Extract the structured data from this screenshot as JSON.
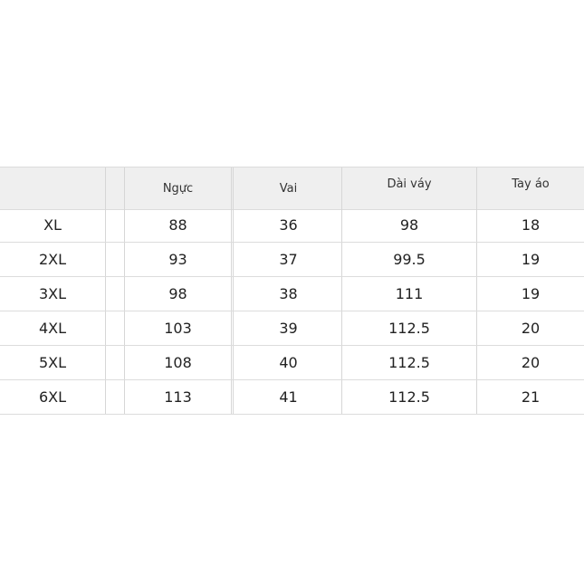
{
  "size_chart": {
    "headers": [
      "",
      "",
      "Ngực",
      "Vai",
      "Dài váy",
      "Tay áo"
    ],
    "rows": [
      {
        "size": "XL",
        "nguc": "88",
        "vai": "36",
        "dai_vay": "98",
        "tay_ao": "18"
      },
      {
        "size": "2XL",
        "nguc": "93",
        "vai": "37",
        "dai_vay": "99.5",
        "tay_ao": "19"
      },
      {
        "size": "3XL",
        "nguc": "98",
        "vai": "38",
        "dai_vay": "111",
        "tay_ao": "19"
      },
      {
        "size": "4XL",
        "nguc": "103",
        "vai": "39",
        "dai_vay": "112.5",
        "tay_ao": "20"
      },
      {
        "size": "5XL",
        "nguc": "108",
        "vai": "40",
        "dai_vay": "112.5",
        "tay_ao": "20"
      },
      {
        "size": "6XL",
        "nguc": "113",
        "vai": "41",
        "dai_vay": "112.5",
        "tay_ao": "21"
      }
    ]
  }
}
